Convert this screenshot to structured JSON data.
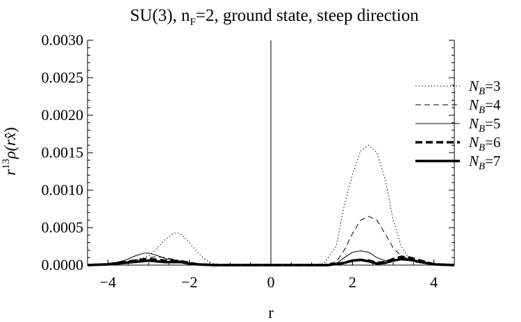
{
  "chart_data": {
    "type": "line",
    "title": "SU(3), n_F=2, ground state, steep direction",
    "title_parts": {
      "main": "SU(3), n",
      "sub": "F",
      "rest": "=2, ground state, steep direction"
    },
    "xlabel": "r",
    "ylabel": "r^13 ρ(r x̂)",
    "ylabel_parts": {
      "r": "r",
      "sup": "13",
      "rest": "ρ(r",
      "hat": "x̂",
      "close": ")"
    },
    "xlim": [
      -4.5,
      4.5
    ],
    "ylim": [
      0,
      0.003
    ],
    "x_ticks": [
      -4,
      -2,
      0,
      2,
      4
    ],
    "x_tick_labels": [
      "−4",
      "−2",
      "0",
      "2",
      "4"
    ],
    "y_ticks": [
      0,
      0.0005,
      0.001,
      0.0015,
      0.002,
      0.0025,
      0.003
    ],
    "y_tick_labels": [
      "0.0000",
      "0.0005",
      "0.0010",
      "0.0015",
      "0.0020",
      "0.0025",
      "0.0030"
    ],
    "grid": false,
    "legend_position": "top-right",
    "series": [
      {
        "name": "N_B=3",
        "legend": {
          "base": "N",
          "sub": "B",
          "rest": "=3"
        },
        "dash": "dotted",
        "weight": "thin",
        "x": [
          -4.5,
          -4.0,
          -3.5,
          -3.0,
          -2.8,
          -2.6,
          -2.4,
          -2.3,
          -2.2,
          -2.0,
          -1.8,
          -1.6,
          -1.4,
          -1.2,
          -1.0,
          0.0,
          1.0,
          1.3,
          1.6,
          1.8,
          2.0,
          2.2,
          2.4,
          2.6,
          2.8,
          3.0,
          3.2,
          3.4,
          3.6,
          4.0,
          4.5
        ],
        "y": [
          0,
          1e-05,
          4e-05,
          0.00012,
          0.00022,
          0.00034,
          0.00042,
          0.00043,
          0.00041,
          0.0003,
          0.00017,
          7e-05,
          2e-05,
          5e-06,
          0,
          0,
          0,
          2e-05,
          0.00025,
          0.0008,
          0.0012,
          0.00152,
          0.0016,
          0.0015,
          0.00115,
          0.0006,
          0.00025,
          8e-05,
          3e-05,
          5e-06,
          0
        ]
      },
      {
        "name": "N_B=4",
        "legend": {
          "base": "N",
          "sub": "B",
          "rest": "=4"
        },
        "dash": "dashed",
        "weight": "thin",
        "x": [
          -4.5,
          -4.0,
          -3.6,
          -3.2,
          -3.0,
          -2.8,
          -2.6,
          -2.4,
          -2.2,
          -2.0,
          -1.6,
          -1.2,
          0.0,
          1.2,
          1.6,
          1.8,
          2.0,
          2.2,
          2.4,
          2.6,
          2.8,
          3.0,
          3.2,
          3.4,
          3.6,
          4.0,
          4.5
        ],
        "y": [
          0,
          1e-05,
          4e-05,
          8e-05,
          0.0001,
          0.00011,
          0.0001,
          8e-05,
          5e-05,
          3e-05,
          1e-05,
          0,
          0,
          0,
          4e-05,
          0.0002,
          0.00042,
          0.0006,
          0.00065,
          0.0006,
          0.00042,
          0.00023,
          0.00012,
          8e-05,
          5e-05,
          1e-05,
          0
        ]
      },
      {
        "name": "N_B=5",
        "legend": {
          "base": "N",
          "sub": "B",
          "rest": "=5"
        },
        "dash": "solid",
        "weight": "thin",
        "x": [
          -4.5,
          -4.0,
          -3.6,
          -3.3,
          -3.1,
          -3.0,
          -2.8,
          -2.6,
          -2.4,
          -2.2,
          -2.0,
          -1.6,
          -1.2,
          0.0,
          1.2,
          1.6,
          1.8,
          2.0,
          2.2,
          2.4,
          2.6,
          2.8,
          3.0,
          3.2,
          3.4,
          3.6,
          3.8,
          4.0,
          4.5
        ],
        "y": [
          0,
          1e-05,
          6e-05,
          0.00013,
          0.00016,
          0.00016,
          0.00013,
          9e-05,
          6e-05,
          4e-05,
          2e-05,
          5e-06,
          0,
          0,
          0,
          2e-05,
          0.0001,
          0.00017,
          0.00019,
          0.00017,
          0.0001,
          6e-05,
          7e-05,
          8e-05,
          7e-05,
          4e-05,
          2e-05,
          1e-05,
          0
        ]
      },
      {
        "name": "N_B=6",
        "legend": {
          "base": "N",
          "sub": "B",
          "rest": "=6"
        },
        "dash": "dashed",
        "weight": "thick",
        "x": [
          -4.5,
          -4.0,
          -3.6,
          -3.2,
          -3.0,
          -2.8,
          -2.6,
          -2.4,
          -2.2,
          -2.0,
          -1.8,
          -1.4,
          0.0,
          1.4,
          1.8,
          2.0,
          2.2,
          2.4,
          2.6,
          2.8,
          3.0,
          3.2,
          3.4,
          3.6,
          3.8,
          4.0,
          4.5
        ],
        "y": [
          0,
          1e-05,
          4e-05,
          7e-05,
          8e-05,
          7e-05,
          6e-05,
          6e-05,
          5e-05,
          3e-05,
          1e-05,
          0,
          0,
          0,
          3e-05,
          6e-05,
          7e-05,
          6e-05,
          3e-05,
          4e-05,
          8e-05,
          0.00011,
          0.0001,
          7e-05,
          4e-05,
          1e-05,
          0
        ]
      },
      {
        "name": "N_B=7",
        "legend": {
          "base": "N",
          "sub": "B",
          "rest": "=7"
        },
        "dash": "solid",
        "weight": "thick",
        "x": [
          -4.5,
          -4.0,
          -3.6,
          -3.2,
          -3.0,
          -2.8,
          -2.6,
          -2.4,
          -2.2,
          -2.0,
          -1.8,
          -1.4,
          0.0,
          1.4,
          1.8,
          2.0,
          2.2,
          2.4,
          2.6,
          2.8,
          3.0,
          3.2,
          3.4,
          3.6,
          3.8,
          4.0,
          4.5
        ],
        "y": [
          0,
          1e-05,
          3e-05,
          5e-05,
          6e-05,
          5e-05,
          4e-05,
          4e-05,
          4e-05,
          2e-05,
          1e-05,
          0,
          0,
          0,
          3e-05,
          6e-05,
          7e-05,
          5e-05,
          2e-05,
          3e-05,
          6e-05,
          8e-05,
          7e-05,
          5e-05,
          3e-05,
          1e-05,
          0
        ]
      }
    ]
  }
}
